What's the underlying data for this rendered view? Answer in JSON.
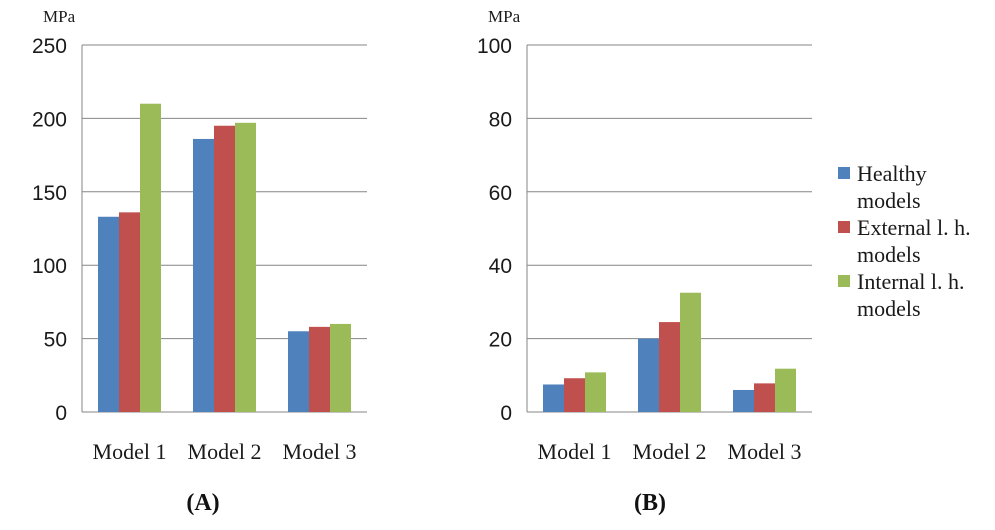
{
  "colors": {
    "healthy": "#4F81BD",
    "external": "#C0504D",
    "internal": "#9BBB59",
    "grid": "#868686"
  },
  "legend": {
    "placement": "right",
    "items": [
      {
        "lines": [
          "Healthy",
          "models"
        ],
        "color": "#4F81BD"
      },
      {
        "lines": [
          "External l. h.",
          "models"
        ],
        "color": "#C0504D"
      },
      {
        "lines": [
          "Internal l. h.",
          "models"
        ],
        "color": "#9BBB59"
      }
    ]
  },
  "chart_data": [
    {
      "type": "bar",
      "panel_label": "(A)",
      "unit": "MPa",
      "categories": [
        "Model 1",
        "Model 2",
        "Model 3"
      ],
      "ylim": [
        0,
        250
      ],
      "yticks": [
        0,
        50,
        100,
        150,
        200,
        250
      ],
      "grid": true,
      "series": [
        {
          "name": "Healthy models",
          "values": [
            133,
            186,
            55
          ]
        },
        {
          "name": "External l. h. models",
          "values": [
            136,
            195,
            58
          ]
        },
        {
          "name": "Internal l. h. models",
          "values": [
            210,
            197,
            60
          ]
        }
      ]
    },
    {
      "type": "bar",
      "panel_label": "(B)",
      "unit": "MPa",
      "categories": [
        "Model 1",
        "Model 2",
        "Model 3"
      ],
      "ylim": [
        0,
        100
      ],
      "yticks": [
        0,
        20,
        40,
        60,
        80,
        100
      ],
      "grid": true,
      "series": [
        {
          "name": "Healthy models",
          "values": [
            7.5,
            20,
            6
          ]
        },
        {
          "name": "External l. h. models",
          "values": [
            9.2,
            24.5,
            7.8
          ]
        },
        {
          "name": "Internal l. h. models",
          "values": [
            10.8,
            32.5,
            11.8
          ]
        }
      ]
    }
  ]
}
